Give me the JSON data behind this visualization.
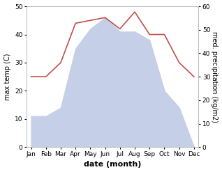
{
  "months": [
    "Jan",
    "Feb",
    "Mar",
    "Apr",
    "May",
    "Jun",
    "Jul",
    "Aug",
    "Sep",
    "Oct",
    "Nov",
    "Dec"
  ],
  "temperature": [
    25,
    25,
    30,
    44,
    45,
    46,
    42,
    48,
    40,
    40,
    30,
    25
  ],
  "precipitation": [
    11,
    11,
    14,
    35,
    42,
    46,
    41,
    41,
    38,
    20,
    14,
    0
  ],
  "temp_color": "#c0504d",
  "precip_fill_color": "#c5d0e8",
  "ylabel_left": "max temp (C)",
  "ylabel_right": "med. precipitation (kg/m2)",
  "xlabel": "date (month)",
  "ylim_left": [
    0,
    50
  ],
  "ylim_right": [
    0,
    60
  ],
  "yticks_left": [
    0,
    10,
    20,
    30,
    40,
    50
  ],
  "yticks_right": [
    0,
    10,
    20,
    30,
    40,
    50,
    60
  ],
  "bg_color": "#ffffff",
  "label_fontsize": 7,
  "tick_fontsize": 6.5,
  "xlabel_fontsize": 8
}
